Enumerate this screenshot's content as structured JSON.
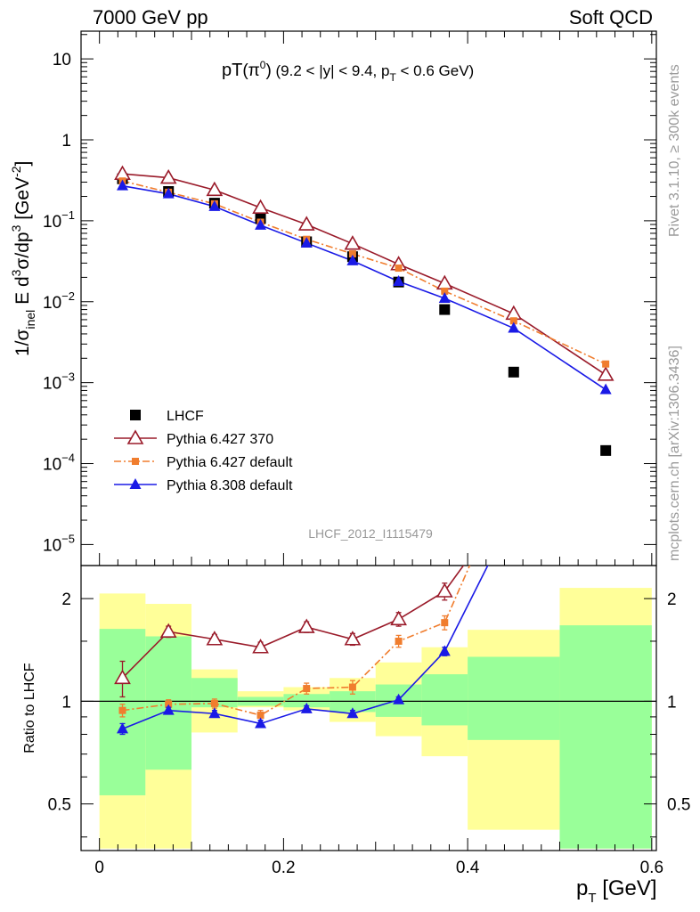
{
  "header": {
    "left": "7000 GeV pp",
    "right": "Soft QCD"
  },
  "side_labels": {
    "rivet": "Rivet 3.1.10, ≥ 300k events",
    "source": "mcplots.cern.ch [arXiv:1306.3436]"
  },
  "main_title": {
    "text": "pT",
    "particle": "π",
    "particle_sup": "0",
    "cuts_a": " (9.2 < |y| < 9.4, p",
    "cuts_sub": "T",
    "cuts_b": " < 0.6 GeV)"
  },
  "watermark": "LHCF_2012_I1115479",
  "y_axis_top": {
    "p1": "1/σ",
    "p1_sub": "inel",
    "p2": " E d",
    "p2_sup": "3",
    "p3": "σ/dp",
    "p3_sup": "3",
    "p4": " [GeV",
    "p4_sup": "-2",
    "p5": "]"
  },
  "y_axis_bottom": "Ratio to LHCF",
  "x_axis": {
    "main": "p",
    "sub": "T",
    "unit": " [GeV]"
  },
  "top_ticks": [
    {
      "exp": 1,
      "base": "10",
      "sup": ""
    },
    {
      "exp": 0,
      "base": "1",
      "sup": ""
    },
    {
      "exp": -1,
      "base": "10",
      "sup": "−1"
    },
    {
      "exp": -2,
      "base": "10",
      "sup": "−2"
    },
    {
      "exp": -3,
      "base": "10",
      "sup": "−3"
    },
    {
      "exp": -4,
      "base": "10",
      "sup": "−4"
    },
    {
      "exp": -5,
      "base": "10",
      "sup": "−5"
    }
  ],
  "ratio_ticks": [
    {
      "v": 2,
      "label": "2"
    },
    {
      "v": 1,
      "label": "1"
    },
    {
      "v": 0.5,
      "label": "0.5"
    }
  ],
  "x_ticks": [
    {
      "v": 0,
      "label": "0"
    },
    {
      "v": 0.2,
      "label": "0.2"
    },
    {
      "v": 0.4,
      "label": "0.4"
    },
    {
      "v": 0.6,
      "label": "0.6"
    }
  ],
  "chart_data": [
    {
      "type": "line",
      "log_y": true,
      "xlim": [
        -0.02,
        0.605
      ],
      "ylim": [
        5.5e-06,
        22
      ],
      "legend_position": "bottom-left",
      "series": [
        {
          "name": "LHCF",
          "style": "data",
          "color": "#000000",
          "x": [
            0.025,
            0.075,
            0.125,
            0.175,
            0.225,
            0.275,
            0.325,
            0.375,
            0.45,
            0.55
          ],
          "y": [
            0.33,
            0.23,
            0.165,
            0.107,
            0.055,
            0.036,
            0.0175,
            0.008,
            0.00135,
            0.000145
          ]
        },
        {
          "name": "Pythia 6.427 370",
          "style": "open-triangle",
          "color": "#9a1b2a",
          "x": [
            0.025,
            0.075,
            0.125,
            0.175,
            0.225,
            0.275,
            0.325,
            0.375,
            0.45,
            0.55
          ],
          "y": [
            0.38,
            0.34,
            0.24,
            0.145,
            0.09,
            0.052,
            0.029,
            0.0168,
            0.0071,
            0.00125
          ]
        },
        {
          "name": "Pythia 6.427 default",
          "style": "square-dashdot",
          "color": "#f07d2e",
          "x": [
            0.025,
            0.075,
            0.125,
            0.175,
            0.225,
            0.275,
            0.325,
            0.375,
            0.45,
            0.55
          ],
          "y": [
            0.31,
            0.225,
            0.162,
            0.096,
            0.059,
            0.039,
            0.026,
            0.0135,
            0.0058,
            0.0017
          ]
        },
        {
          "name": "Pythia 8.308 default",
          "style": "filled-triangle",
          "color": "#1a1ae6",
          "x": [
            0.025,
            0.075,
            0.125,
            0.175,
            0.225,
            0.275,
            0.325,
            0.375,
            0.45,
            0.55
          ],
          "y": [
            0.27,
            0.215,
            0.15,
            0.088,
            0.053,
            0.032,
            0.0178,
            0.011,
            0.0047,
            0.00082
          ]
        }
      ]
    },
    {
      "type": "line",
      "log_y": true,
      "xlim": [
        -0.02,
        0.605
      ],
      "ylim": [
        0.365,
        2.5
      ],
      "reference_line": 1,
      "bands": [
        {
          "x0": 0.0,
          "x1": 0.05,
          "yellow": [
            0.37,
            2.07
          ],
          "green": [
            0.53,
            1.63
          ]
        },
        {
          "x0": 0.05,
          "x1": 0.1,
          "yellow": [
            0.37,
            1.93
          ],
          "green": [
            0.63,
            1.55
          ]
        },
        {
          "x0": 0.1,
          "x1": 0.15,
          "yellow": [
            0.81,
            1.24
          ],
          "green": [
            0.96,
            1.17
          ]
        },
        {
          "x0": 0.15,
          "x1": 0.2,
          "yellow": [
            0.96,
            1.07
          ],
          "green": [
            0.97,
            1.03
          ]
        },
        {
          "x0": 0.2,
          "x1": 0.25,
          "yellow": [
            0.94,
            1.1
          ],
          "green": [
            0.96,
            1.05
          ]
        },
        {
          "x0": 0.25,
          "x1": 0.3,
          "yellow": [
            0.87,
            1.17
          ],
          "green": [
            0.93,
            1.07
          ]
        },
        {
          "x0": 0.3,
          "x1": 0.35,
          "yellow": [
            0.79,
            1.3
          ],
          "green": [
            0.9,
            1.12
          ]
        },
        {
          "x0": 0.35,
          "x1": 0.4,
          "yellow": [
            0.69,
            1.44
          ],
          "green": [
            0.85,
            1.2
          ]
        },
        {
          "x0": 0.4,
          "x1": 0.5,
          "yellow": [
            0.42,
            1.62
          ],
          "green": [
            0.77,
            1.35
          ]
        },
        {
          "x0": 0.5,
          "x1": 0.6,
          "yellow": [
            0.37,
            2.15
          ],
          "green": [
            0.37,
            1.67
          ]
        }
      ],
      "series": [
        {
          "name": "Pythia 6.427 370",
          "style": "open-triangle",
          "color": "#9a1b2a",
          "x": [
            0.025,
            0.075,
            0.125,
            0.175,
            0.225,
            0.275,
            0.325,
            0.375,
            0.4
          ],
          "y": [
            1.17,
            1.6,
            1.52,
            1.44,
            1.65,
            1.52,
            1.74,
            2.1,
            2.6
          ],
          "err": [
            0.14,
            0.06,
            0.05,
            0.05,
            0.06,
            0.06,
            0.08,
            0.12,
            0
          ]
        },
        {
          "name": "Pythia 6.427 default",
          "style": "square-dashdot",
          "color": "#f07d2e",
          "x": [
            0.025,
            0.075,
            0.125,
            0.175,
            0.225,
            0.275,
            0.325,
            0.375,
            0.405
          ],
          "y": [
            0.94,
            0.98,
            0.985,
            0.91,
            1.09,
            1.1,
            1.5,
            1.7,
            2.6
          ],
          "err": [
            0.04,
            0.03,
            0.03,
            0.03,
            0.04,
            0.05,
            0.06,
            0.08,
            0
          ]
        },
        {
          "name": "Pythia 8.308 default",
          "style": "filled-triangle",
          "color": "#1a1ae6",
          "x": [
            0.025,
            0.075,
            0.125,
            0.175,
            0.225,
            0.275,
            0.325,
            0.375,
            0.425
          ],
          "y": [
            0.83,
            0.94,
            0.92,
            0.86,
            0.95,
            0.92,
            1.01,
            1.4,
            2.6
          ],
          "err": [
            0.03,
            0.02,
            0.02,
            0.02,
            0.02,
            0.02,
            0.02,
            0.04,
            0
          ]
        }
      ]
    }
  ]
}
